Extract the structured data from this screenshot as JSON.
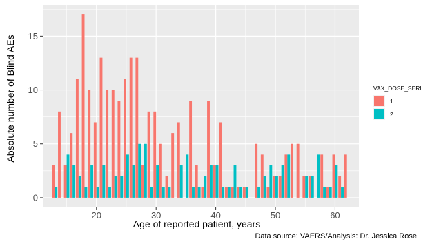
{
  "chart_data": {
    "type": "bar",
    "xlabel": "Age of reported patient, years",
    "ylabel": "Absolute number of Blind AEs",
    "caption": "Data source: VAERS/Analysis: Dr. Jessica Rose",
    "legend_title": "VAX_DOSE_SERIES",
    "legend_position": "right",
    "xlim": [
      11,
      64
    ],
    "ylim": [
      -0.9,
      17.9
    ],
    "x_ticks": [
      10,
      20,
      30,
      40,
      50,
      60
    ],
    "y_ticks": [
      0,
      5,
      10,
      15
    ],
    "grid": true,
    "background": "#ebebeb",
    "series": [
      {
        "name": "1",
        "color": "#f8766d",
        "points": [
          [
            13,
            3
          ],
          [
            14,
            8
          ],
          [
            15,
            3
          ],
          [
            16,
            6
          ],
          [
            17,
            11
          ],
          [
            18,
            17
          ],
          [
            19,
            10
          ],
          [
            20,
            7
          ],
          [
            21,
            13
          ],
          [
            22,
            10
          ],
          [
            23,
            10
          ],
          [
            24,
            9
          ],
          [
            25,
            11
          ],
          [
            26,
            13
          ],
          [
            27,
            13
          ],
          [
            28,
            3
          ],
          [
            29,
            8
          ],
          [
            30,
            8
          ],
          [
            31,
            5
          ],
          [
            32,
            2
          ],
          [
            33,
            6
          ],
          [
            34,
            7
          ],
          [
            36,
            9
          ],
          [
            37,
            3
          ],
          [
            38,
            1
          ],
          [
            39,
            9
          ],
          [
            40,
            3
          ],
          [
            41,
            7
          ],
          [
            42,
            1
          ],
          [
            43,
            1
          ],
          [
            44,
            1
          ],
          [
            45,
            1
          ],
          [
            47,
            5
          ],
          [
            48,
            4
          ],
          [
            49,
            1
          ],
          [
            50,
            2
          ],
          [
            51,
            2
          ],
          [
            52,
            4
          ],
          [
            53,
            5
          ],
          [
            54,
            5
          ],
          [
            55,
            2
          ],
          [
            56,
            2
          ],
          [
            58,
            4
          ],
          [
            59,
            1
          ],
          [
            60,
            4
          ],
          [
            61,
            2
          ],
          [
            62,
            4
          ]
        ]
      },
      {
        "name": "2",
        "color": "#00bfc4",
        "points": [
          [
            13,
            1
          ],
          [
            15,
            4
          ],
          [
            16,
            3
          ],
          [
            17,
            2
          ],
          [
            18,
            1
          ],
          [
            19,
            3
          ],
          [
            20,
            1
          ],
          [
            21,
            3
          ],
          [
            22,
            1
          ],
          [
            23,
            2
          ],
          [
            24,
            2
          ],
          [
            25,
            4
          ],
          [
            26,
            3
          ],
          [
            27,
            5
          ],
          [
            28,
            5
          ],
          [
            29,
            1
          ],
          [
            30,
            3
          ],
          [
            31,
            1
          ],
          [
            32,
            1
          ],
          [
            34,
            3
          ],
          [
            35,
            4
          ],
          [
            36,
            1
          ],
          [
            37,
            1
          ],
          [
            38,
            2
          ],
          [
            39,
            3
          ],
          [
            40,
            3
          ],
          [
            41,
            1
          ],
          [
            42,
            1
          ],
          [
            43,
            3
          ],
          [
            44,
            1
          ],
          [
            45,
            1
          ],
          [
            47,
            1
          ],
          [
            48,
            2
          ],
          [
            49,
            3
          ],
          [
            50,
            2
          ],
          [
            51,
            3
          ],
          [
            52,
            4
          ],
          [
            55,
            2
          ],
          [
            56,
            2
          ],
          [
            57,
            4
          ],
          [
            58,
            1
          ],
          [
            59,
            1
          ],
          [
            60,
            3
          ],
          [
            61,
            1
          ]
        ]
      }
    ]
  }
}
